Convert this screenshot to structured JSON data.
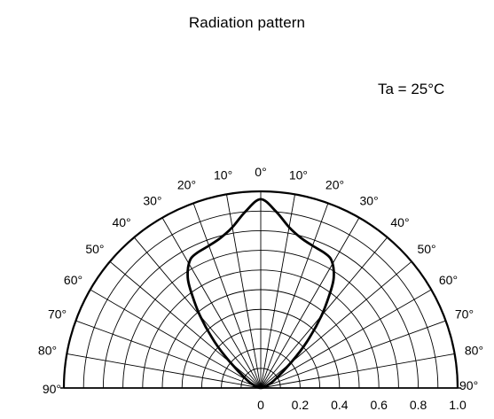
{
  "chart_data": {
    "type": "polar-half",
    "title": "Radiation pattern",
    "annotations": [
      "Ta = 25°C"
    ],
    "radial_axis": {
      "range": [
        0,
        1.0
      ],
      "tick_values": [
        0,
        0.2,
        0.4,
        0.6,
        0.8,
        1.0
      ],
      "tick_labels": [
        "0",
        "0.2",
        "0.4",
        "0.6",
        "0.8",
        "1.0"
      ],
      "grid": true
    },
    "angular_axis": {
      "range_deg": [
        -90,
        90
      ],
      "tick_values_deg": [
        -90,
        -80,
        -70,
        -60,
        -50,
        -40,
        -30,
        -20,
        -10,
        0,
        10,
        20,
        30,
        40,
        50,
        60,
        70,
        80,
        90
      ],
      "tick_labels": [
        "90°",
        "80°",
        "70°",
        "60°",
        "50°",
        "40°",
        "30°",
        "20°",
        "10°",
        "0°",
        "10°",
        "20°",
        "30°",
        "40°",
        "50°",
        "60°",
        "70°",
        "80°",
        "90°"
      ],
      "grid": true
    },
    "series": [
      {
        "angles_deg": [
          -90,
          -80,
          -70,
          -60,
          -50,
          -45,
          -40,
          -36,
          -34,
          -32,
          -30,
          -28,
          -25,
          -20,
          -15,
          -10,
          -5,
          0,
          5,
          10,
          15,
          20,
          25,
          28,
          30,
          32,
          34,
          36,
          40,
          45,
          50,
          60,
          70,
          80,
          90
        ],
        "values": [
          0,
          0.01,
          0.03,
          0.08,
          0.2,
          0.33,
          0.48,
          0.6,
          0.66,
          0.7,
          0.73,
          0.75,
          0.76,
          0.77,
          0.79,
          0.83,
          0.9,
          0.96,
          0.9,
          0.83,
          0.79,
          0.77,
          0.76,
          0.75,
          0.73,
          0.7,
          0.66,
          0.6,
          0.48,
          0.33,
          0.2,
          0.08,
          0.03,
          0.01,
          0
        ]
      }
    ]
  }
}
